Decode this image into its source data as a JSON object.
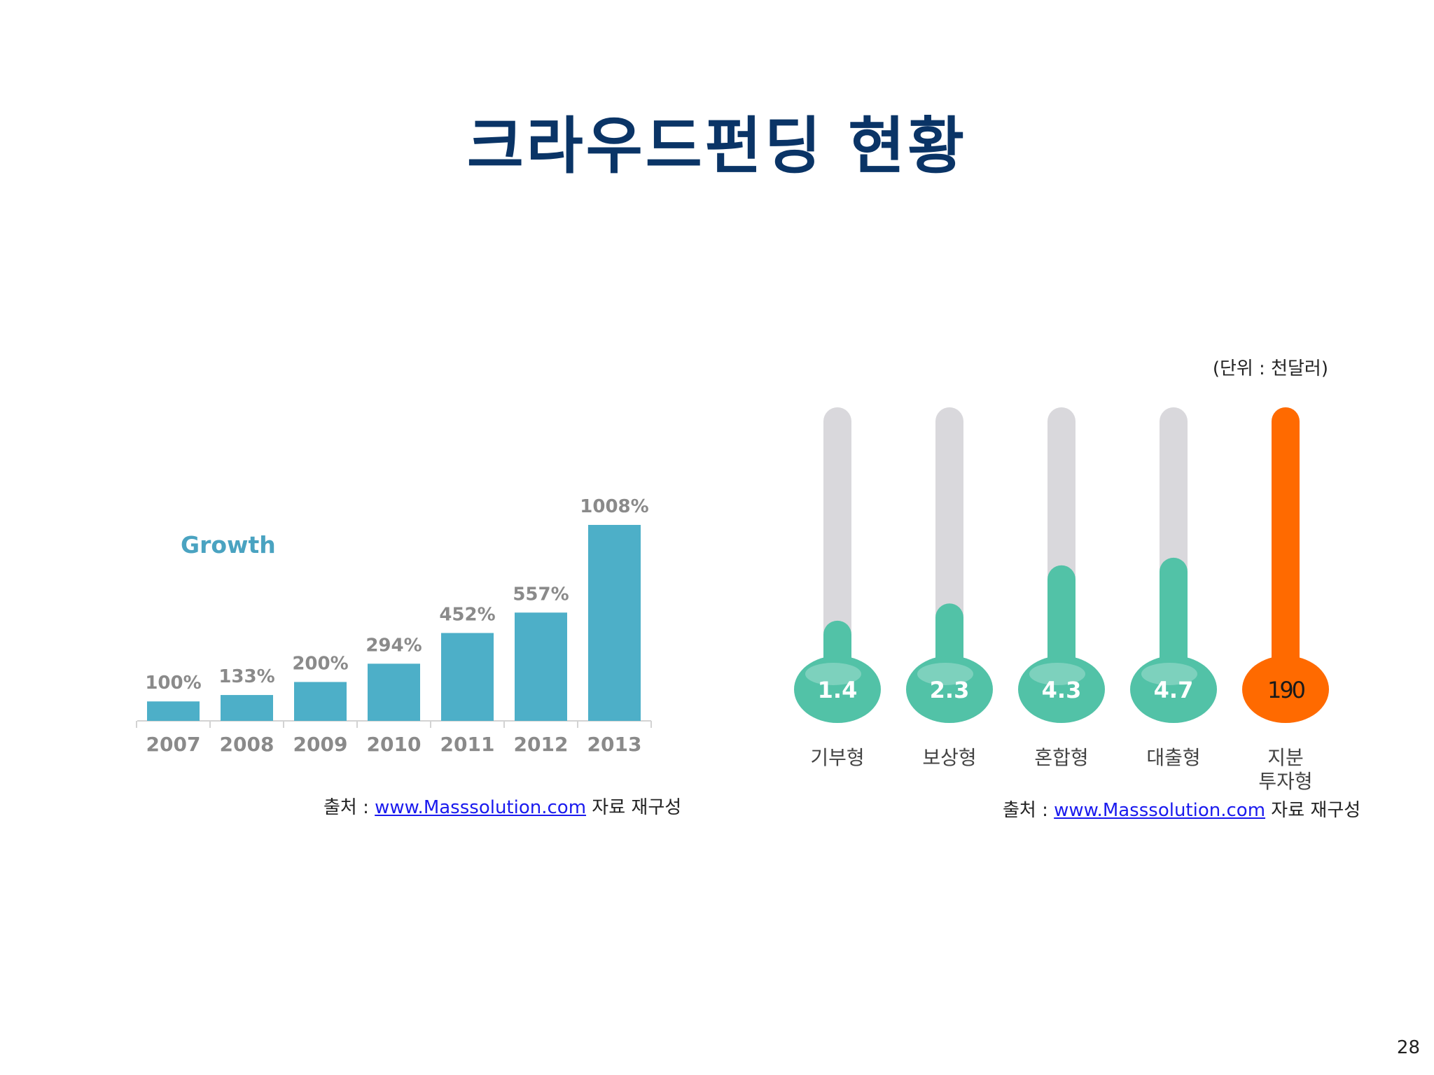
{
  "slide": {
    "title": "크라우드펀딩 현황",
    "page_number": "28"
  },
  "colors": {
    "title": "#0a3466",
    "growth_bar": "#4dafc8",
    "growth_label": "#4aa3c1",
    "value_label": "#8a8a8a",
    "thermo_track": "#d9d8dc",
    "thermo_fill": "#52c2a7",
    "thermo_highlight": "#ff6a00"
  },
  "chart_data": [
    {
      "type": "bar",
      "title": "Growth",
      "categories": [
        "2007",
        "2008",
        "2009",
        "2010",
        "2011",
        "2012",
        "2013"
      ],
      "values": [
        100,
        133,
        200,
        294,
        452,
        557,
        1008
      ],
      "data_labels": [
        "100%",
        "133%",
        "200%",
        "294%",
        "452%",
        "557%",
        "1008%"
      ],
      "ylim": [
        0,
        1008
      ],
      "grid": false,
      "source": {
        "prefix": "출처 : ",
        "link": "www.Masssolution.com",
        "suffix": " 자료 재구성"
      }
    },
    {
      "type": "bar",
      "title": "",
      "unit_note": "(단위 : 천달러)",
      "categories": [
        "기부형",
        "보상형",
        "혼합형",
        "대출형",
        "지분 투자형"
      ],
      "values": [
        1.4,
        2.3,
        4.3,
        4.7,
        190
      ],
      "data_labels": [
        "1.4",
        "2.3",
        "4.3",
        "4.7",
        "190"
      ],
      "highlight_index": 4,
      "grid": false,
      "source": {
        "prefix": "출처 : ",
        "link": "www.Masssolution.com",
        "suffix": " 자료 재구성"
      }
    }
  ]
}
